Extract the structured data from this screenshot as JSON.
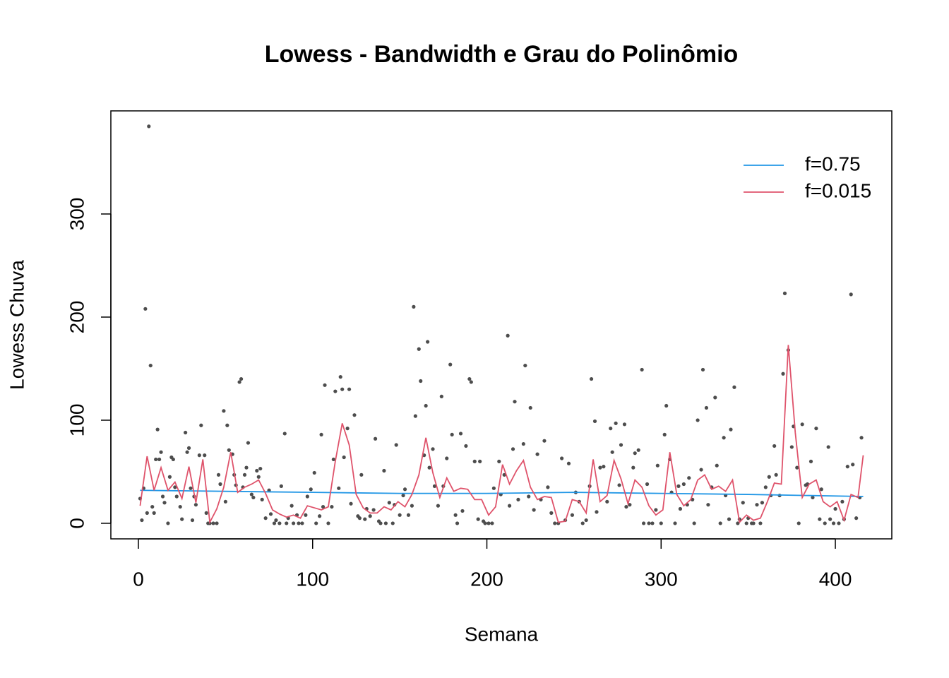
{
  "chart_data": {
    "type": "scatter",
    "title": "Lowess - Bandwidth e Grau do Polinômio",
    "x_label": "Semana",
    "y_label": "Lowess Chuva",
    "xlim": [
      -15.8,
      432.4
    ],
    "ylim": [
      -15.1,
      400
    ],
    "xticks": [
      0,
      100,
      200,
      300,
      400
    ],
    "yticks": [
      0,
      100,
      200,
      300
    ],
    "grid": false,
    "legend": "topright",
    "points": {
      "color": "#4d4d4d",
      "x": [
        1,
        2,
        3,
        4,
        5,
        6,
        7,
        8,
        9,
        10,
        11,
        12,
        13,
        14,
        15,
        17,
        18,
        19,
        20,
        21,
        22,
        24,
        25,
        27,
        28,
        29,
        30,
        31,
        32,
        33,
        35,
        36,
        38,
        39,
        40,
        41,
        43,
        45,
        46,
        47,
        49,
        50,
        51,
        52,
        54,
        55,
        56,
        58,
        59,
        60,
        61,
        62,
        63,
        65,
        66,
        68,
        69,
        70,
        71,
        73,
        75,
        76,
        78,
        79,
        81,
        82,
        84,
        85,
        86,
        88,
        89,
        91,
        92,
        94,
        96,
        97,
        99,
        101,
        102,
        104,
        105,
        106,
        107,
        109,
        111,
        112,
        113,
        115,
        116,
        117,
        118,
        120,
        121,
        122,
        124,
        126,
        127,
        128,
        130,
        131,
        133,
        135,
        136,
        138,
        139,
        141,
        142,
        144,
        146,
        147,
        148,
        150,
        152,
        153,
        155,
        157,
        158,
        159,
        161,
        162,
        164,
        165,
        166,
        167,
        169,
        170,
        172,
        174,
        175,
        177,
        179,
        180,
        182,
        183,
        185,
        186,
        188,
        190,
        191,
        193,
        195,
        196,
        198,
        199,
        201,
        203,
        204,
        207,
        208,
        210,
        212,
        213,
        215,
        216,
        218,
        221,
        222,
        224,
        225,
        227,
        229,
        231,
        233,
        235,
        237,
        239,
        241,
        243,
        245,
        247,
        249,
        251,
        253,
        255,
        257,
        259,
        260,
        262,
        263,
        265,
        267,
        269,
        271,
        272,
        274,
        276,
        277,
        279,
        280,
        282,
        284,
        285,
        287,
        289,
        290,
        292,
        293,
        295,
        297,
        298,
        300,
        302,
        303,
        305,
        306,
        308,
        310,
        311,
        313,
        315,
        316,
        318,
        319,
        321,
        323,
        324,
        326,
        327,
        329,
        331,
        332,
        334,
        336,
        337,
        339,
        340,
        342,
        344,
        345,
        347,
        349,
        350,
        352,
        353,
        355,
        357,
        358,
        360,
        362,
        363,
        365,
        366,
        368,
        370,
        371,
        373,
        375,
        376,
        378,
        379,
        381,
        383,
        384,
        386,
        387,
        389,
        391,
        392,
        394,
        396,
        397,
        399,
        400,
        402,
        404,
        405,
        407,
        409,
        410,
        412,
        414,
        415
      ],
      "values": [
        24,
        3,
        34,
        208,
        10,
        385,
        153,
        16,
        10,
        62,
        91,
        62,
        69,
        26,
        20,
        0,
        45,
        64,
        62,
        35,
        26,
        16,
        4,
        88,
        69,
        73,
        34,
        3,
        26,
        18,
        66,
        95,
        66,
        10,
        0,
        0,
        0,
        0,
        47,
        38,
        109,
        21,
        95,
        71,
        67,
        47,
        37,
        137,
        140,
        35,
        47,
        54,
        78,
        28,
        25,
        51,
        45,
        53,
        23,
        5,
        32,
        9,
        0,
        3,
        0,
        36,
        87,
        0,
        5,
        17,
        0,
        8,
        0,
        0,
        8,
        26,
        33,
        49,
        0,
        7,
        86,
        16,
        134,
        0,
        16,
        62,
        128,
        34,
        142,
        130,
        64,
        92,
        130,
        19,
        105,
        7,
        5,
        47,
        4,
        14,
        7,
        13,
        82,
        2,
        0,
        51,
        0,
        20,
        0,
        18,
        76,
        8,
        27,
        33,
        8,
        17,
        210,
        104,
        169,
        138,
        66,
        114,
        176,
        54,
        72,
        36,
        17,
        123,
        36,
        63,
        154,
        86,
        8,
        0,
        87,
        12,
        75,
        140,
        137,
        60,
        4,
        60,
        2,
        0,
        0,
        0,
        34,
        60,
        28,
        47,
        182,
        17,
        72,
        118,
        23,
        77,
        153,
        26,
        112,
        13,
        67,
        23,
        80,
        35,
        10,
        0,
        0,
        63,
        3,
        58,
        8,
        30,
        21,
        0,
        3,
        36,
        140,
        99,
        11,
        54,
        55,
        21,
        92,
        69,
        97,
        37,
        76,
        96,
        16,
        18,
        54,
        68,
        71,
        149,
        0,
        38,
        0,
        0,
        13,
        56,
        0,
        86,
        114,
        62,
        30,
        0,
        36,
        14,
        38,
        18,
        44,
        23,
        0,
        100,
        52,
        149,
        112,
        18,
        35,
        122,
        56,
        0,
        83,
        27,
        4,
        91,
        132,
        0,
        4,
        20,
        0,
        5,
        0,
        0,
        18,
        0,
        20,
        35,
        45,
        27,
        75,
        47,
        27,
        145,
        223,
        168,
        74,
        94,
        54,
        0,
        96,
        37,
        38,
        60,
        25,
        92,
        4,
        33,
        0,
        74,
        4,
        0,
        14,
        0,
        21,
        4,
        55,
        222,
        57,
        5,
        25,
        83
      ]
    },
    "series": [
      {
        "name": "f=0.75",
        "color": "#2297e6",
        "x": [
          1,
          50,
          100,
          150,
          200,
          250,
          300,
          350,
          416
        ],
        "values": [
          32,
          31,
          30,
          29,
          29,
          30,
          29,
          28,
          26
        ]
      },
      {
        "name": "f=0.015",
        "color": "#df536b",
        "x": [
          1,
          5,
          9,
          13,
          17,
          21,
          25,
          29,
          33,
          37,
          41,
          45,
          49,
          53,
          57,
          61,
          65,
          69,
          73,
          77,
          81,
          85,
          89,
          93,
          97,
          101,
          105,
          109,
          113,
          117,
          121,
          125,
          129,
          133,
          137,
          141,
          145,
          149,
          153,
          157,
          161,
          165,
          169,
          173,
          177,
          181,
          185,
          189,
          193,
          197,
          201,
          205,
          209,
          213,
          217,
          221,
          225,
          229,
          233,
          237,
          241,
          245,
          249,
          253,
          257,
          261,
          265,
          269,
          273,
          277,
          281,
          285,
          289,
          293,
          297,
          301,
          305,
          309,
          313,
          317,
          321,
          325,
          329,
          333,
          337,
          341,
          345,
          349,
          353,
          357,
          361,
          365,
          369,
          373,
          377,
          381,
          385,
          389,
          393,
          397,
          401,
          405,
          409,
          413,
          416
        ],
        "values": [
          17,
          65,
          32,
          54,
          32,
          40,
          24,
          55,
          20,
          62,
          1,
          14,
          35,
          69,
          30,
          35,
          38,
          42,
          29,
          13,
          9,
          6,
          8,
          5,
          17,
          15,
          13,
          16,
          60,
          97,
          76,
          28,
          15,
          10,
          10,
          16,
          13,
          21,
          16,
          28,
          47,
          83,
          49,
          25,
          44,
          31,
          34,
          33,
          23,
          23,
          8,
          16,
          57,
          38,
          51,
          61,
          35,
          23,
          26,
          25,
          1,
          2,
          23,
          21,
          10,
          62,
          21,
          27,
          61,
          43,
          19,
          42,
          35,
          17,
          8,
          13,
          69,
          28,
          17,
          23,
          42,
          47,
          33,
          36,
          31,
          42,
          1,
          8,
          3,
          5,
          21,
          39,
          38,
          173,
          88,
          25,
          38,
          42,
          21,
          16,
          21,
          3,
          28,
          25,
          66
        ]
      }
    ]
  }
}
